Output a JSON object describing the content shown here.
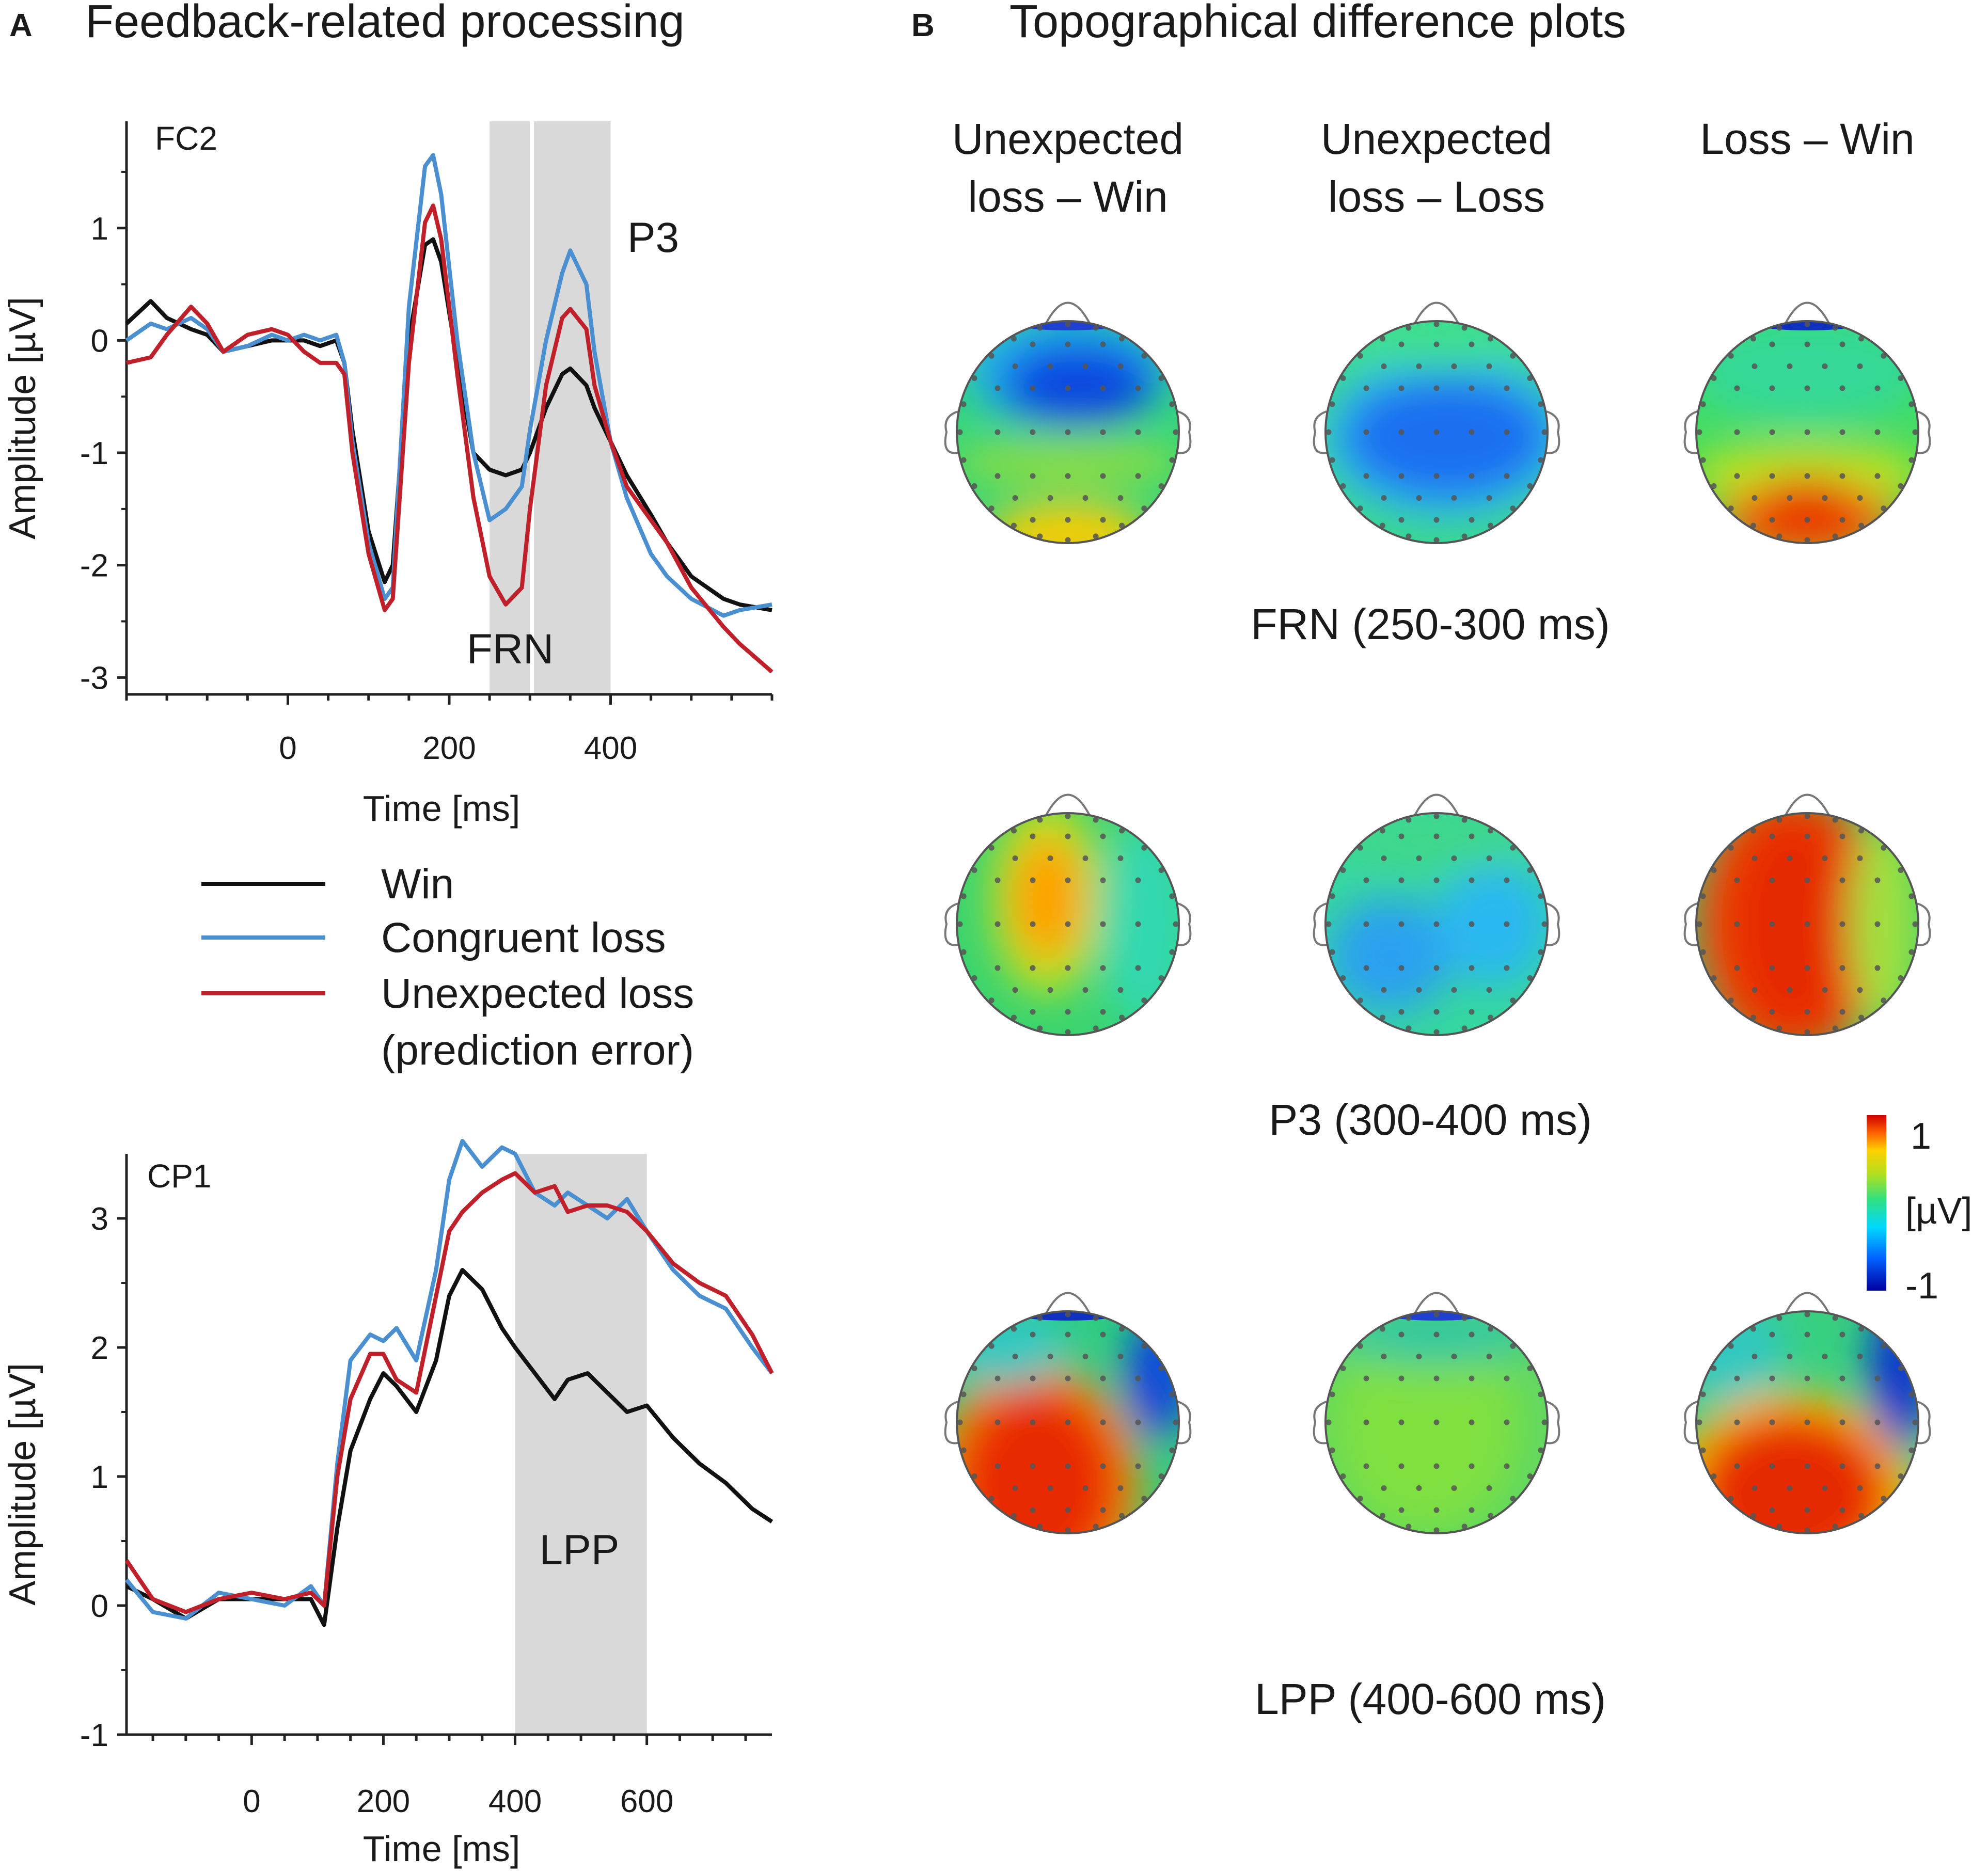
{
  "panel_a": {
    "letter": "A",
    "title": "Feedback-related processing"
  },
  "panel_b": {
    "letter": "B",
    "title": "Topographical difference plots",
    "columns": [
      {
        "line1": "Unexpected",
        "line2": "loss – Win"
      },
      {
        "line1": "Unexpected",
        "line2": "loss – Loss"
      },
      {
        "line1": "Loss – Win",
        "line2": ""
      }
    ],
    "rows": [
      {
        "label": "FRN (250-300 ms)"
      },
      {
        "label": "P3 (300-400 ms)"
      },
      {
        "label": "LPP (400-600 ms)"
      }
    ],
    "colorbar": {
      "max_label": "1",
      "unit": "[µV]",
      "min_label": "-1",
      "min": -1,
      "max": 1
    }
  },
  "legend": [
    {
      "label": "Win",
      "color": "#111111"
    },
    {
      "label": "Congruent loss",
      "color": "#4a90d0"
    },
    {
      "label": "Unexpected loss",
      "label2": "(prediction error)",
      "color": "#c0202a"
    }
  ],
  "colors": {
    "win": "#111111",
    "congruent": "#4a90d0",
    "unexpected": "#c0202a",
    "shade": "#d9d9d9"
  },
  "chart_data": [
    {
      "type": "line",
      "electrode": "FC2",
      "xlabel": "Time [ms]",
      "ylabel": "Amplitude [µV]",
      "xlim": [
        -200,
        600
      ],
      "ylim": [
        -3.15,
        1.95
      ],
      "xticks": [
        0,
        200,
        400
      ],
      "yticks": [
        1,
        0,
        -1,
        -2,
        -3
      ],
      "shaded_windows": [
        {
          "x0": 250,
          "x1": 300,
          "label": "FRN"
        },
        {
          "x0": 305,
          "x1": 400,
          "label": "P3"
        }
      ],
      "series": [
        {
          "name": "Win",
          "x": [
            -200,
            -170,
            -150,
            -120,
            -100,
            -80,
            -50,
            -20,
            0,
            20,
            40,
            60,
            70,
            80,
            100,
            120,
            130,
            150,
            170,
            180,
            190,
            210,
            230,
            250,
            270,
            290,
            300,
            320,
            340,
            350,
            370,
            380,
            400,
            420,
            450,
            470,
            500,
            540,
            560,
            600
          ],
          "y": [
            0.15,
            0.35,
            0.2,
            0.1,
            0.05,
            -0.1,
            -0.05,
            0.0,
            0.0,
            0.0,
            -0.05,
            0.0,
            -0.2,
            -0.8,
            -1.7,
            -2.15,
            -2.0,
            0.0,
            0.85,
            0.9,
            0.7,
            -0.2,
            -1.0,
            -1.15,
            -1.2,
            -1.15,
            -1.0,
            -0.6,
            -0.3,
            -0.25,
            -0.4,
            -0.6,
            -0.9,
            -1.2,
            -1.55,
            -1.8,
            -2.1,
            -2.3,
            -2.35,
            -2.4
          ]
        },
        {
          "name": "Congruent loss",
          "x": [
            -200,
            -170,
            -150,
            -120,
            -100,
            -80,
            -50,
            -20,
            0,
            20,
            40,
            60,
            70,
            80,
            100,
            120,
            130,
            150,
            170,
            180,
            190,
            210,
            230,
            250,
            270,
            290,
            300,
            320,
            340,
            350,
            370,
            380,
            400,
            420,
            450,
            470,
            500,
            540,
            560,
            600
          ],
          "y": [
            0.0,
            0.15,
            0.1,
            0.2,
            0.1,
            -0.1,
            -0.05,
            0.05,
            0.0,
            0.05,
            0.0,
            0.05,
            -0.2,
            -0.9,
            -1.8,
            -2.3,
            -2.2,
            0.3,
            1.55,
            1.65,
            1.3,
            0.0,
            -1.0,
            -1.6,
            -1.5,
            -1.3,
            -0.8,
            0.0,
            0.6,
            0.8,
            0.5,
            -0.1,
            -0.9,
            -1.4,
            -1.9,
            -2.1,
            -2.3,
            -2.45,
            -2.4,
            -2.35
          ]
        },
        {
          "name": "Unexpected loss",
          "x": [
            -200,
            -170,
            -150,
            -120,
            -100,
            -80,
            -50,
            -20,
            0,
            20,
            40,
            60,
            70,
            80,
            100,
            120,
            130,
            150,
            170,
            180,
            190,
            210,
            230,
            250,
            270,
            290,
            300,
            320,
            340,
            350,
            370,
            380,
            400,
            420,
            450,
            470,
            500,
            540,
            560,
            600
          ],
          "y": [
            -0.2,
            -0.15,
            0.05,
            0.3,
            0.15,
            -0.1,
            0.05,
            0.1,
            0.05,
            -0.1,
            -0.2,
            -0.2,
            -0.3,
            -1.0,
            -1.9,
            -2.4,
            -2.3,
            -0.2,
            1.05,
            1.2,
            0.9,
            -0.3,
            -1.4,
            -2.1,
            -2.35,
            -2.2,
            -1.5,
            -0.4,
            0.2,
            0.28,
            0.1,
            -0.4,
            -0.9,
            -1.3,
            -1.6,
            -1.8,
            -2.2,
            -2.55,
            -2.7,
            -2.95
          ]
        }
      ]
    },
    {
      "type": "line",
      "electrode": "CP1",
      "xlabel": "Time [ms]",
      "ylabel": "Amplitude [µV]",
      "xlim": [
        -190,
        790
      ],
      "ylim": [
        -1.0,
        3.5
      ],
      "xticks": [
        0,
        200,
        400,
        600
      ],
      "yticks": [
        3,
        2,
        1,
        0,
        -1
      ],
      "shaded_windows": [
        {
          "x0": 400,
          "x1": 600,
          "label": "LPP"
        }
      ],
      "series": [
        {
          "name": "Win",
          "x": [
            -190,
            -150,
            -100,
            -50,
            0,
            50,
            90,
            110,
            130,
            150,
            180,
            200,
            220,
            250,
            280,
            300,
            320,
            350,
            380,
            400,
            430,
            460,
            480,
            510,
            540,
            570,
            600,
            640,
            680,
            720,
            760,
            790
          ],
          "y": [
            0.15,
            0.05,
            -0.1,
            0.05,
            0.05,
            0.05,
            0.05,
            -0.15,
            0.6,
            1.2,
            1.6,
            1.8,
            1.7,
            1.5,
            1.9,
            2.4,
            2.6,
            2.45,
            2.15,
            2.0,
            1.8,
            1.6,
            1.75,
            1.8,
            1.65,
            1.5,
            1.55,
            1.3,
            1.1,
            0.95,
            0.75,
            0.65
          ]
        },
        {
          "name": "Congruent loss",
          "x": [
            -190,
            -150,
            -100,
            -50,
            0,
            50,
            90,
            110,
            130,
            150,
            180,
            200,
            220,
            250,
            280,
            300,
            320,
            350,
            380,
            400,
            430,
            460,
            480,
            510,
            540,
            570,
            600,
            640,
            680,
            720,
            760,
            790
          ],
          "y": [
            0.2,
            -0.05,
            -0.1,
            0.1,
            0.05,
            0.0,
            0.15,
            0.0,
            1.1,
            1.9,
            2.1,
            2.05,
            2.15,
            1.9,
            2.6,
            3.3,
            3.6,
            3.4,
            3.55,
            3.5,
            3.2,
            3.1,
            3.2,
            3.1,
            3.0,
            3.15,
            2.9,
            2.6,
            2.4,
            2.3,
            2.0,
            1.8
          ]
        },
        {
          "name": "Unexpected loss",
          "x": [
            -190,
            -150,
            -100,
            -50,
            0,
            50,
            90,
            110,
            130,
            150,
            180,
            200,
            220,
            250,
            280,
            300,
            320,
            350,
            380,
            400,
            430,
            460,
            480,
            510,
            540,
            570,
            600,
            640,
            680,
            720,
            760,
            790
          ],
          "y": [
            0.35,
            0.05,
            -0.05,
            0.05,
            0.1,
            0.05,
            0.1,
            0.0,
            1.0,
            1.6,
            1.95,
            1.95,
            1.75,
            1.65,
            2.4,
            2.9,
            3.05,
            3.2,
            3.3,
            3.35,
            3.2,
            3.25,
            3.05,
            3.1,
            3.1,
            3.05,
            2.9,
            2.65,
            2.5,
            2.4,
            2.1,
            1.8
          ]
        }
      ]
    }
  ]
}
